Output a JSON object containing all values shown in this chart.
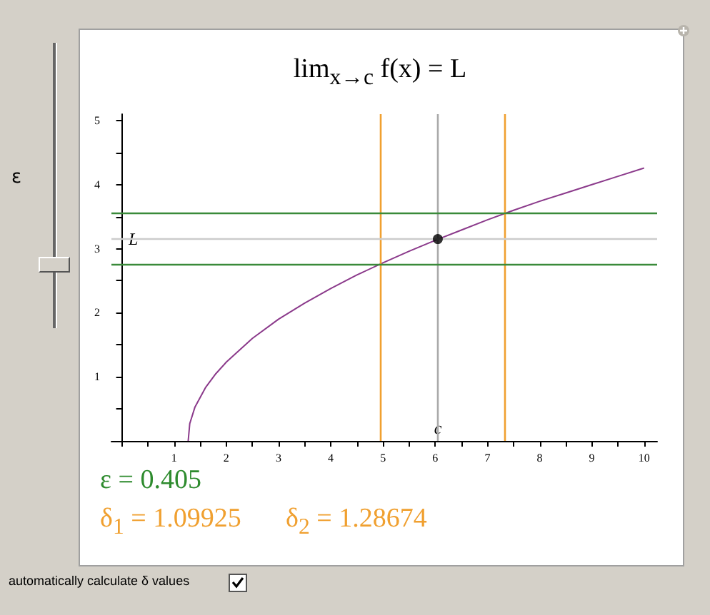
{
  "chart_data": {
    "type": "line",
    "title": "lim$_{x→c}$ f(x) = L",
    "xlim": [
      -0.2,
      10.25
    ],
    "ylim": [
      0,
      5.1
    ],
    "xticks": [
      {
        "value": 0,
        "label": null
      },
      {
        "value": 0.5,
        "label": null
      },
      1,
      {
        "value": 1.5,
        "label": null
      },
      2,
      {
        "value": 2.5,
        "label": null
      },
      3,
      {
        "value": 3.5,
        "label": null
      },
      4,
      {
        "value": 4.5,
        "label": null
      },
      5,
      {
        "value": 5.5,
        "label": null
      },
      6,
      {
        "value": 6.5,
        "label": null
      },
      7,
      {
        "value": 7.5,
        "label": null
      },
      8,
      {
        "value": 8.5,
        "label": null
      },
      9,
      {
        "value": 9.5,
        "label": null
      },
      10
    ],
    "yticks": [
      {
        "value": 0,
        "label": null
      },
      {
        "value": 0.5,
        "label": null
      },
      1,
      {
        "value": 1.5,
        "label": null
      },
      2,
      {
        "value": 2.5,
        "label": null
      },
      3,
      {
        "value": 3.5,
        "label": null
      },
      4,
      {
        "value": 4.5,
        "label": null
      },
      5
    ],
    "series": [
      {
        "color": "#8b3a8b",
        "marker": "none",
        "x": [
          1.27,
          1.3,
          1.4,
          1.6,
          1.8,
          2,
          2.5,
          3,
          3.5,
          4,
          4.5,
          5,
          5.5,
          6,
          6.5,
          7,
          7.5,
          8,
          8.5,
          9,
          9.5,
          10
        ],
        "values": [
          0,
          0.27,
          0.53,
          0.83,
          1.05,
          1.23,
          1.6,
          1.9,
          2.15,
          2.38,
          2.59,
          2.78,
          2.96,
          3.13,
          3.29,
          3.45,
          3.6,
          3.74,
          3.87,
          4,
          4.13,
          4.26
        ]
      },
      {
        "type": "scatter",
        "color": "#000000",
        "marker": "circle",
        "x": [
          6.05
        ],
        "values": [
          3.15
        ]
      }
    ],
    "ref_lines": [
      {
        "axis": "x",
        "value": 4.95,
        "color": "#f0a030"
      },
      {
        "axis": "x",
        "value": 6.05,
        "label": "c",
        "color": "#aaaaaa"
      },
      {
        "axis": "x",
        "value": 7.34,
        "color": "#f0a030"
      },
      {
        "axis": "y",
        "value": 2.745,
        "color": "#3a8a3a"
      },
      {
        "axis": "y",
        "value": 3.15,
        "label": "L",
        "color": "#cccccc"
      },
      {
        "axis": "y",
        "value": 3.555,
        "color": "#3a8a3a"
      }
    ],
    "annotations": [
      "ε",
      "ε = 0.405",
      "δ$_{1}$ = 1.09925",
      "δ$_{2}$ = 1.28674",
      "automatically calculate δ values"
    ]
  }
}
